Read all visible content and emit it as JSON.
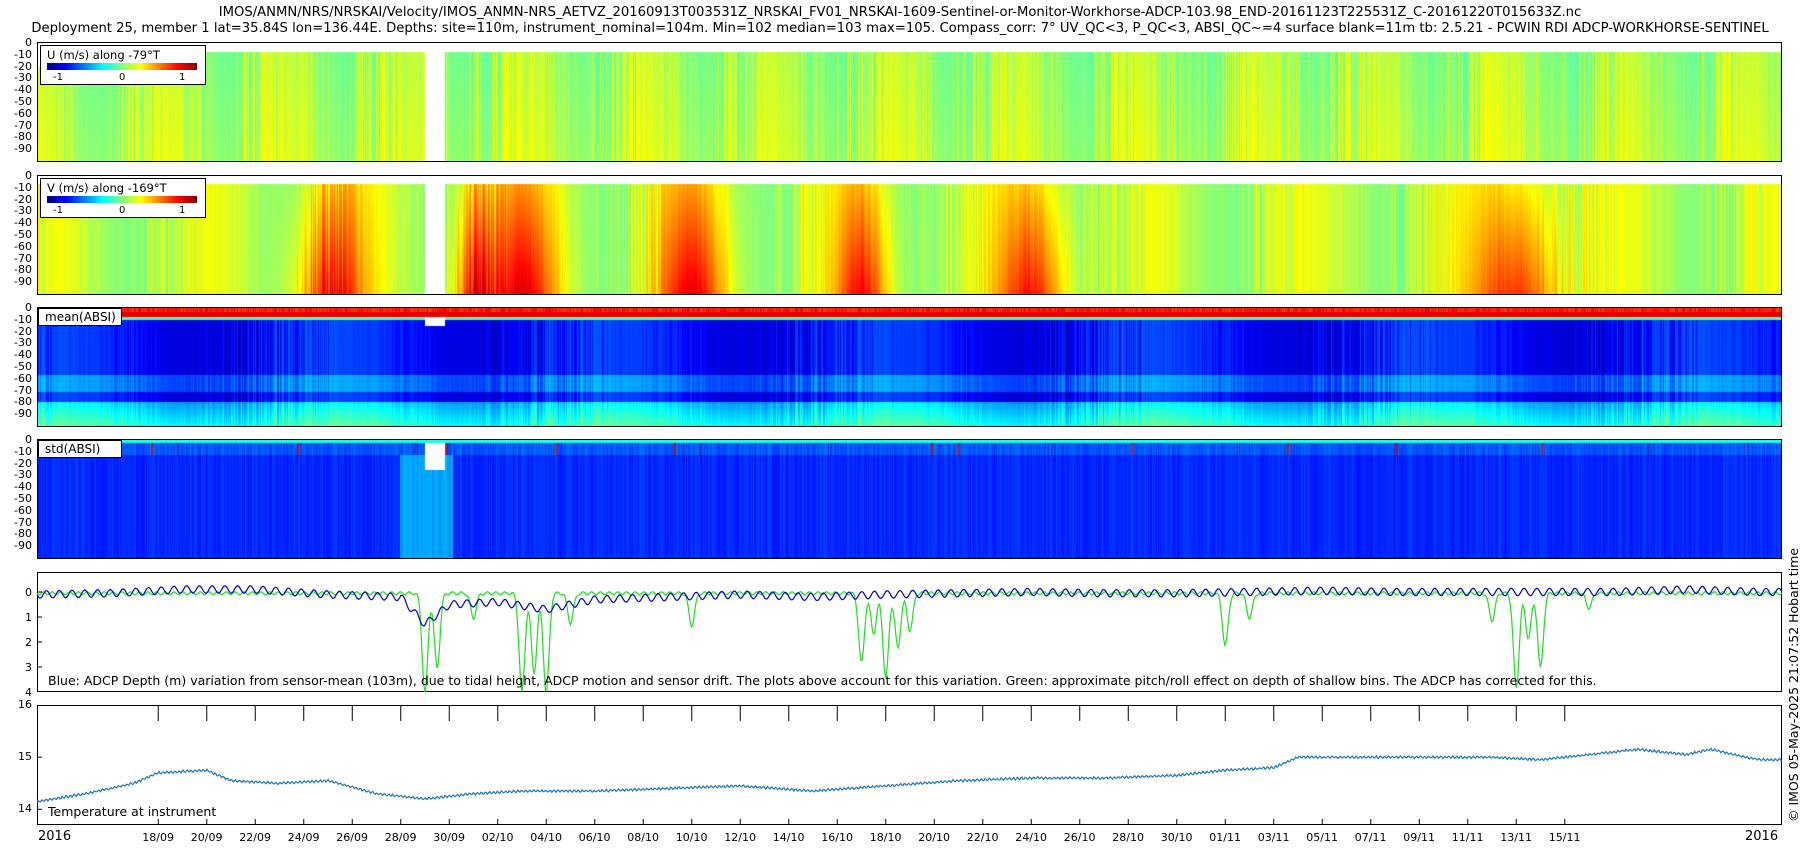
{
  "header": {
    "title_line1": "IMOS/ANMN/NRS/NRSKAI/Velocity/IMOS_ANMN-NRS_AETVZ_20160913T003531Z_NRSKAI_FV01_NRSKAI-1609-Sentinel-or-Monitor-Workhorse-ADCP-103.98_END-20161123T225531Z_C-20161220T015633Z.nc",
    "title_line2": "Deployment 25, member 1 lat=35.84S lon=136.44E. Depths: site=110m, instrument_nominal=104m. Min=102 median=103 max=105. Compass_corr: 7° UV_QC<3, P_QC<3, ABSI_QC~=4 surface blank=11m tb: 2.5.21 - PCWIN RDI ADCP-WORKHORSE-SENTINEL"
  },
  "side_label": "© IMOS 05-May-2025 21:07:52 Hobart time",
  "depth_ticks": [
    "0",
    "-10",
    "-20",
    "-30",
    "-40",
    "-50",
    "-60",
    "-70",
    "-80",
    "-90"
  ],
  "panels": {
    "u": {
      "legend_title": "U (m/s) along -79°T",
      "cbar_ticks": [
        "-1",
        "0",
        "1"
      ]
    },
    "v": {
      "legend_title": "V (m/s) along -169°T",
      "cbar_ticks": [
        "-1",
        "0",
        "1"
      ]
    },
    "mean": {
      "label": "mean(ABSI)"
    },
    "std": {
      "label": "std(ABSI)"
    },
    "depth": {
      "ytick_labels": [
        "0",
        "1",
        "2",
        "3",
        "4"
      ],
      "annotation": "Blue: ADCP Depth (m) variation from sensor-mean (103m), due to tidal height, ADCP motion and sensor drift. The plots above account for this variation. Green: approximate pitch/roll effect on depth of shallow bins. The ADCP has corrected for this."
    },
    "temperature": {
      "ytick_labels": [
        "16",
        "15",
        "14"
      ],
      "annotation": "Temperature at instrument"
    }
  },
  "x_axis": {
    "year_left": "2016",
    "year_right": "2016",
    "tick_labels": [
      "18/09",
      "20/09",
      "22/09",
      "24/09",
      "26/09",
      "28/09",
      "30/09",
      "02/10",
      "04/10",
      "06/10",
      "08/10",
      "10/10",
      "12/10",
      "14/10",
      "16/10",
      "18/10",
      "20/10",
      "22/10",
      "24/10",
      "26/10",
      "28/10",
      "30/10",
      "01/11",
      "03/11",
      "05/11",
      "07/11",
      "09/11",
      "11/11",
      "13/11",
      "15/11"
    ]
  },
  "colors": {
    "adcp_depth": "#0000cc",
    "pitch_roll": "#22dd22",
    "temperature": "#1f77b4"
  },
  "chart_data": [
    {
      "type": "heatmap",
      "title": "U (m/s) along -79°T",
      "ylabel": "",
      "y_ticks": [
        0,
        -10,
        -20,
        -30,
        -40,
        -50,
        -60,
        -70,
        -80,
        -90
      ],
      "ylim": [
        -97,
        0
      ],
      "xlim": [
        "2016-09-13",
        "2016-11-23"
      ],
      "color_range": [
        -1.3,
        1.3
      ],
      "colormap": "jet",
      "value_note": "mostly near 0 to 0.2 (green), with data gap around 29/09"
    },
    {
      "type": "heatmap",
      "title": "V (m/s) along -169°T",
      "y_ticks": [
        0,
        -10,
        -20,
        -30,
        -40,
        -50,
        -60,
        -70,
        -80,
        -90
      ],
      "ylim": [
        -97,
        0
      ],
      "xlim": [
        "2016-09-13",
        "2016-11-23"
      ],
      "color_range": [
        -1.3,
        1.3
      ],
      "colormap": "jet",
      "value_note": "banded 0 to 1, strongest (orange/red) near 30/09-04/10, 17-18/10 and 13/11"
    },
    {
      "type": "heatmap",
      "title": "mean(ABSI)",
      "y_ticks": [
        0,
        -10,
        -20,
        -30,
        -40,
        -50,
        -60,
        -70,
        -80,
        -90
      ],
      "ylim": [
        -97,
        0
      ],
      "xlim": [
        "2016-09-13",
        "2016-11-23"
      ],
      "colormap": "jet"
    },
    {
      "type": "heatmap",
      "title": "std(ABSI)",
      "y_ticks": [
        0,
        -10,
        -20,
        -30,
        -40,
        -50,
        -60,
        -70,
        -80,
        -90
      ],
      "ylim": [
        -97,
        0
      ],
      "xlim": [
        "2016-09-13",
        "2016-11-23"
      ],
      "colormap": "jet"
    },
    {
      "type": "line",
      "title": "",
      "y_ticks": [
        0,
        1,
        2,
        3,
        4
      ],
      "ylim": [
        -0.8,
        4
      ],
      "y_inverted": true,
      "xlim": [
        "2016-09-13",
        "2016-11-23"
      ],
      "series": [
        {
          "color": "#0000cc",
          "x": [
            "2016-09-13",
            "2016-09-16",
            "2016-09-19",
            "2016-09-22",
            "2016-09-25",
            "2016-09-28",
            "2016-09-29",
            "2016-09-30",
            "2016-10-02",
            "2016-10-04",
            "2016-10-06",
            "2016-10-09",
            "2016-10-12",
            "2016-10-15",
            "2016-10-18",
            "2016-10-21",
            "2016-10-24",
            "2016-10-27",
            "2016-10-30",
            "2016-11-02",
            "2016-11-05",
            "2016-11-08",
            "2016-11-11",
            "2016-11-14",
            "2016-11-17",
            "2016-11-20",
            "2016-11-23"
          ],
          "values": [
            0.1,
            0.05,
            -0.1,
            -0.1,
            0.1,
            0.2,
            1.3,
            0.5,
            0.4,
            0.7,
            0.3,
            0.2,
            0.1,
            0.2,
            0.1,
            0.05,
            0.0,
            0.05,
            0.05,
            0.0,
            -0.05,
            0.0,
            0.0,
            0.0,
            0.0,
            -0.1,
            0.0
          ],
          "tidal_amplitude": 0.15
        },
        {
          "color": "#22dd22",
          "spikes": [
            {
              "x": "2016-09-29",
              "value": 4.0
            },
            {
              "x": "2016-09-29T12:00",
              "value": 3.0
            },
            {
              "x": "2016-10-01",
              "value": 1.0
            },
            {
              "x": "2016-10-03",
              "value": 4.0
            },
            {
              "x": "2016-10-03T12:00",
              "value": 3.2
            },
            {
              "x": "2016-10-04",
              "value": 4.0
            },
            {
              "x": "2016-10-05",
              "value": 1.2
            },
            {
              "x": "2016-10-10",
              "value": 1.3
            },
            {
              "x": "2016-10-17",
              "value": 2.8
            },
            {
              "x": "2016-10-17T12:00",
              "value": 1.6
            },
            {
              "x": "2016-10-18",
              "value": 3.4
            },
            {
              "x": "2016-10-18T12:00",
              "value": 2.2
            },
            {
              "x": "2016-10-19",
              "value": 1.5
            },
            {
              "x": "2016-11-01",
              "value": 2.1
            },
            {
              "x": "2016-11-02",
              "value": 1.0
            },
            {
              "x": "2016-11-12",
              "value": 1.1
            },
            {
              "x": "2016-11-13",
              "value": 3.8
            },
            {
              "x": "2016-11-13T12:00",
              "value": 1.8
            },
            {
              "x": "2016-11-14",
              "value": 3.0
            },
            {
              "x": "2016-11-16",
              "value": 0.6
            }
          ],
          "baseline": 0.05
        }
      ]
    },
    {
      "type": "line",
      "title": "",
      "y_ticks": [
        16,
        15,
        14
      ],
      "ylim": [
        13.7,
        16
      ],
      "xlim": [
        "2016-09-13",
        "2016-11-23"
      ],
      "series": [
        {
          "color": "#1f77b4",
          "x": [
            "2016-09-13",
            "2016-09-15",
            "2016-09-17",
            "2016-09-18",
            "2016-09-20",
            "2016-09-21",
            "2016-09-23",
            "2016-09-25",
            "2016-09-27",
            "2016-09-29",
            "2016-10-01",
            "2016-10-03",
            "2016-10-06",
            "2016-10-09",
            "2016-10-12",
            "2016-10-15",
            "2016-10-18",
            "2016-10-21",
            "2016-10-24",
            "2016-10-27",
            "2016-10-30",
            "2016-11-01",
            "2016-11-03",
            "2016-11-04",
            "2016-11-06",
            "2016-11-09",
            "2016-11-12",
            "2016-11-14",
            "2016-11-16",
            "2016-11-18",
            "2016-11-20",
            "2016-11-21",
            "2016-11-23"
          ],
          "values": [
            14.15,
            14.3,
            14.5,
            14.7,
            14.75,
            14.55,
            14.5,
            14.55,
            14.3,
            14.2,
            14.3,
            14.35,
            14.35,
            14.4,
            14.45,
            14.35,
            14.45,
            14.55,
            14.6,
            14.6,
            14.65,
            14.75,
            14.8,
            15.0,
            15.0,
            15.0,
            15.0,
            14.95,
            15.05,
            15.15,
            15.05,
            15.15,
            14.95
          ]
        }
      ]
    }
  ]
}
